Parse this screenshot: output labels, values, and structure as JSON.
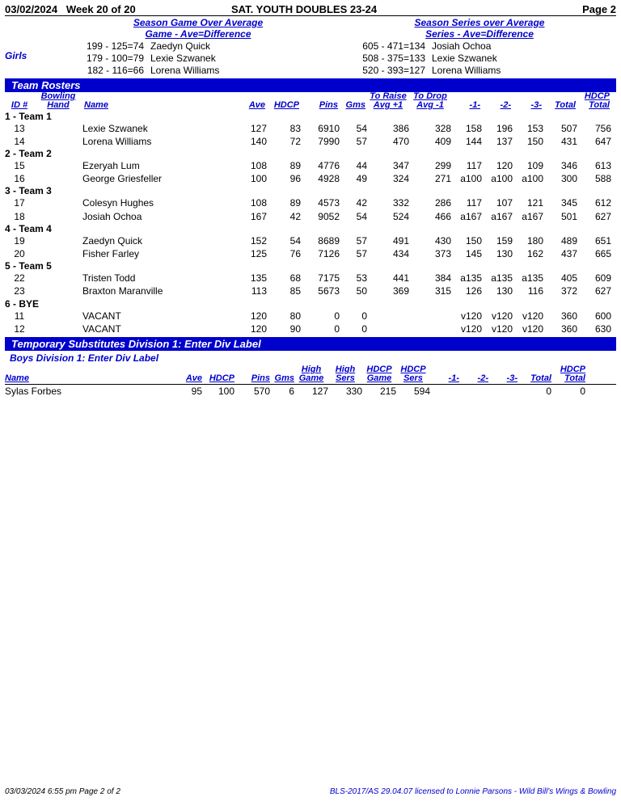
{
  "header": {
    "date": "03/02/2024",
    "week": "Week 20 of 20",
    "title": "SAT. YOUTH DOUBLES 23-24",
    "page": "Page 2"
  },
  "over_avg": {
    "game": {
      "hdr1": "Season Game Over Average",
      "hdr2": "Game - Ave=Difference",
      "rows": [
        {
          "diff": "199 - 125=74",
          "name": "Zaedyn Quick"
        },
        {
          "diff": "179 - 100=79",
          "name": "Lexie Szwanek"
        },
        {
          "diff": "182 - 116=66",
          "name": "Lorena Williams"
        }
      ]
    },
    "series": {
      "hdr1": "Season Series over Average",
      "hdr2": "Series - Ave=Difference",
      "rows": [
        {
          "diff": "605 - 471=134",
          "name": "Josiah Ochoa"
        },
        {
          "diff": "508 - 375=133",
          "name": "Lexie Szwanek"
        },
        {
          "diff": "520 - 393=127",
          "name": "Lorena Williams"
        }
      ]
    },
    "girls_label": "Girls"
  },
  "team_rosters": {
    "bar": "Team Rosters",
    "head": {
      "id": "ID #",
      "hand": "Bowling Hand",
      "name": "Name",
      "ave": "Ave",
      "hdcp": "HDCP",
      "pins": "Pins",
      "gms": "Gms",
      "raise": "To Raise Avg +1",
      "drop": "To Drop Avg -1",
      "g1": "-1-",
      "g2": "-2-",
      "g3": "-3-",
      "total": "Total",
      "htotal": "HDCP Total"
    },
    "groups": [
      {
        "hdr": "1 - Team 1",
        "rows": [
          {
            "id": "13",
            "name": "Lexie Szwanek",
            "ave": "127",
            "hdcp": "83",
            "pins": "6910",
            "gms": "54",
            "raise": "386",
            "drop": "328",
            "g1": "158",
            "g2": "196",
            "g3": "153",
            "total": "507",
            "htotal": "756"
          },
          {
            "id": "14",
            "name": "Lorena Williams",
            "ave": "140",
            "hdcp": "72",
            "pins": "7990",
            "gms": "57",
            "raise": "470",
            "drop": "409",
            "g1": "144",
            "g2": "137",
            "g3": "150",
            "total": "431",
            "htotal": "647"
          }
        ]
      },
      {
        "hdr": "2 - Team 2",
        "rows": [
          {
            "id": "15",
            "name": "Ezeryah Lum",
            "ave": "108",
            "hdcp": "89",
            "pins": "4776",
            "gms": "44",
            "raise": "347",
            "drop": "299",
            "g1": "117",
            "g2": "120",
            "g3": "109",
            "total": "346",
            "htotal": "613"
          },
          {
            "id": "16",
            "name": "George Griesfeller",
            "ave": "100",
            "hdcp": "96",
            "pins": "4928",
            "gms": "49",
            "raise": "324",
            "drop": "271",
            "g1": "a100",
            "g2": "a100",
            "g3": "a100",
            "total": "300",
            "htotal": "588"
          }
        ]
      },
      {
        "hdr": "3 - Team 3",
        "rows": [
          {
            "id": "17",
            "name": "Colesyn Hughes",
            "ave": "108",
            "hdcp": "89",
            "pins": "4573",
            "gms": "42",
            "raise": "332",
            "drop": "286",
            "g1": "117",
            "g2": "107",
            "g3": "121",
            "total": "345",
            "htotal": "612"
          },
          {
            "id": "18",
            "name": "Josiah Ochoa",
            "ave": "167",
            "hdcp": "42",
            "pins": "9052",
            "gms": "54",
            "raise": "524",
            "drop": "466",
            "g1": "a167",
            "g2": "a167",
            "g3": "a167",
            "total": "501",
            "htotal": "627"
          }
        ]
      },
      {
        "hdr": "4 - Team 4",
        "rows": [
          {
            "id": "19",
            "name": "Zaedyn Quick",
            "ave": "152",
            "hdcp": "54",
            "pins": "8689",
            "gms": "57",
            "raise": "491",
            "drop": "430",
            "g1": "150",
            "g2": "159",
            "g3": "180",
            "total": "489",
            "htotal": "651"
          },
          {
            "id": "20",
            "name": "Fisher Farley",
            "ave": "125",
            "hdcp": "76",
            "pins": "7126",
            "gms": "57",
            "raise": "434",
            "drop": "373",
            "g1": "145",
            "g2": "130",
            "g3": "162",
            "total": "437",
            "htotal": "665"
          }
        ]
      },
      {
        "hdr": "5 - Team 5",
        "rows": [
          {
            "id": "22",
            "name": "Tristen Todd",
            "ave": "135",
            "hdcp": "68",
            "pins": "7175",
            "gms": "53",
            "raise": "441",
            "drop": "384",
            "g1": "a135",
            "g2": "a135",
            "g3": "a135",
            "total": "405",
            "htotal": "609"
          },
          {
            "id": "23",
            "name": "Braxton Maranville",
            "ave": "113",
            "hdcp": "85",
            "pins": "5673",
            "gms": "50",
            "raise": "369",
            "drop": "315",
            "g1": "126",
            "g2": "130",
            "g3": "116",
            "total": "372",
            "htotal": "627"
          }
        ]
      },
      {
        "hdr": "6 - BYE",
        "rows": [
          {
            "id": "11",
            "name": "VACANT",
            "ave": "120",
            "hdcp": "80",
            "pins": "0",
            "gms": "0",
            "raise": "",
            "drop": "",
            "g1": "v120",
            "g2": "v120",
            "g3": "v120",
            "total": "360",
            "htotal": "600"
          },
          {
            "id": "12",
            "name": "VACANT",
            "ave": "120",
            "hdcp": "90",
            "pins": "0",
            "gms": "0",
            "raise": "",
            "drop": "",
            "g1": "v120",
            "g2": "v120",
            "g3": "v120",
            "total": "360",
            "htotal": "630"
          }
        ]
      }
    ]
  },
  "subs": {
    "bar": "Temporary Substitutes   Division 1: Enter Div Label",
    "boys_lbl": "Boys   Division 1: Enter Div Label",
    "head": {
      "name": "Name",
      "ave": "Ave",
      "hdcp": "HDCP",
      "pins": "Pins",
      "gms": "Gms",
      "hgame": "High Game",
      "hsers": "High Sers",
      "hcgame": "HDCP Game",
      "hcsers": "HDCP Sers",
      "g1": "-1-",
      "g2": "-2-",
      "g3": "-3-",
      "total": "Total",
      "htotal": "HDCP Total"
    },
    "rows": [
      {
        "name": "Sylas Forbes",
        "ave": "95",
        "hdcp": "100",
        "pins": "570",
        "gms": "6",
        "hgame": "127",
        "hsers": "330",
        "hcgame": "215",
        "hcsers": "594",
        "g1": "",
        "g2": "",
        "g3": "",
        "total": "0",
        "htotal": "0"
      }
    ]
  },
  "footer": {
    "left": "03/03/2024  6:55 pm  Page 2 of 2",
    "right": "BLS-2017/AS 29.04.07 licensed to Lonnie Parsons - Wild Bill's Wings & Bowling"
  }
}
